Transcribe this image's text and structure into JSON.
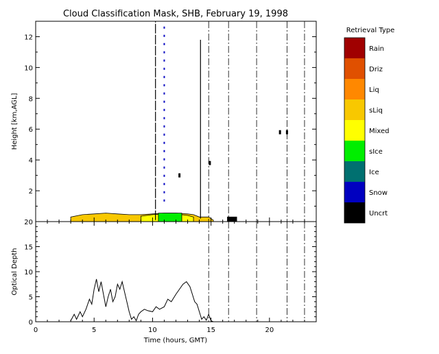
{
  "chart_data": [
    {
      "type": "heatmap",
      "title": "Cloud Classification Mask, SHB, February 19, 1998",
      "xlabel": "",
      "ylabel": "Height [km,AGL]",
      "xlim": [
        0,
        24
      ],
      "ylim": [
        0,
        13
      ],
      "ytick_labels": [
        "2",
        "4",
        "6",
        "8",
        "10",
        "12"
      ],
      "legend": {
        "title": "Retrieval Type",
        "placement": "right",
        "items": [
          {
            "label": "Rain",
            "color": "#a00000"
          },
          {
            "label": "Driz",
            "color": "#e05000"
          },
          {
            "label": "Liq",
            "color": "#ff8800"
          },
          {
            "label": "sLiq",
            "color": "#f8c800"
          },
          {
            "label": "Mixed",
            "color": "#ffff00"
          },
          {
            "label": "sIce",
            "color": "#00ee00"
          },
          {
            "label": "Ice",
            "color": "#007070"
          },
          {
            "label": "Snow",
            "color": "#0000c0"
          },
          {
            "label": "Uncrt",
            "color": "#000000"
          }
        ]
      },
      "layers": [
        {
          "class": "sLiq",
          "color": "#f8c800",
          "top_profile": [
            [
              3.0,
              0.3
            ],
            [
              4.0,
              0.45
            ],
            [
              5.0,
              0.5
            ],
            [
              6.0,
              0.55
            ],
            [
              7.0,
              0.5
            ],
            [
              8.0,
              0.45
            ],
            [
              9.0,
              0.45
            ],
            [
              10.0,
              0.5
            ],
            [
              11.0,
              0.55
            ],
            [
              12.0,
              0.55
            ],
            [
              13.0,
              0.5
            ],
            [
              13.5,
              0.45
            ],
            [
              14.0,
              0.3
            ],
            [
              14.8,
              0.3
            ],
            [
              15.2,
              0.1
            ]
          ]
        },
        {
          "class": "Mixed",
          "color": "#ffff00",
          "top_profile": [
            [
              9.0,
              0.35
            ],
            [
              10.0,
              0.45
            ],
            [
              11.0,
              0.5
            ],
            [
              12.0,
              0.5
            ],
            [
              13.0,
              0.4
            ],
            [
              13.5,
              0.3
            ]
          ]
        },
        {
          "class": "sIce",
          "color": "#00ee00",
          "top_profile": [
            [
              10.5,
              0.55
            ],
            [
              12.5,
              0.55
            ]
          ]
        },
        {
          "class": "Uncrt",
          "color": "#000000",
          "top_profile": [
            [
              16.4,
              0.3
            ],
            [
              17.2,
              0.3
            ]
          ]
        }
      ],
      "vertical_events": [
        {
          "x": 10.25,
          "y0": 0.1,
          "y1": 13.0,
          "class": "Uncrt"
        },
        {
          "x": 11.0,
          "y0": 1.3,
          "y1": 12.9,
          "class": "Snow"
        },
        {
          "x": 14.1,
          "y0": 0.2,
          "y1": 11.8,
          "class": "Uncrt"
        }
      ],
      "isolated_echoes": [
        {
          "x": 12.3,
          "y": 3.0,
          "class": "Uncrt"
        },
        {
          "x": 14.9,
          "y": 3.8,
          "class": "Uncrt"
        },
        {
          "x": 20.9,
          "y": 5.8,
          "class": "Uncrt"
        },
        {
          "x": 21.5,
          "y": 5.8,
          "class": "Uncrt"
        }
      ],
      "dash_dot_markers": [
        14.8,
        16.5,
        18.9,
        21.5,
        23.0
      ]
    },
    {
      "type": "line",
      "title": "",
      "xlabel": "Time (hours, GMT)",
      "ylabel": "Optical Depth",
      "xlim": [
        0,
        24
      ],
      "ylim": [
        0,
        20
      ],
      "xtick_labels": [
        "0",
        "5",
        "10",
        "15",
        "20"
      ],
      "ytick_labels": [
        "0",
        "5",
        "10",
        "15",
        "20"
      ],
      "series": [
        {
          "name": "",
          "x": [
            3.0,
            3.3,
            3.5,
            3.8,
            4.0,
            4.3,
            4.6,
            4.8,
            5.0,
            5.2,
            5.4,
            5.6,
            5.8,
            6.0,
            6.2,
            6.4,
            6.6,
            6.8,
            7.0,
            7.2,
            7.4,
            7.6,
            7.8,
            8.0,
            8.2,
            8.4,
            8.6,
            8.8,
            9.0,
            9.3,
            9.6,
            10.0,
            10.3,
            10.6,
            11.0,
            11.3,
            11.6,
            12.0,
            12.3,
            12.6,
            12.9,
            13.2,
            13.4,
            13.6,
            13.8,
            14.0,
            14.2,
            14.4,
            14.6,
            14.8,
            15.0,
            15.2
          ],
          "values": [
            0.2,
            1.5,
            0.5,
            2.0,
            1.0,
            2.5,
            4.5,
            3.5,
            6.5,
            8.5,
            6.0,
            8.0,
            5.5,
            3.0,
            5.0,
            6.5,
            4.0,
            5.0,
            7.5,
            6.5,
            8.0,
            6.0,
            4.0,
            2.0,
            0.5,
            1.0,
            0.2,
            1.5,
            2.0,
            2.5,
            2.2,
            2.0,
            3.0,
            2.5,
            3.0,
            4.5,
            4.0,
            5.5,
            6.5,
            7.5,
            8.0,
            7.0,
            5.5,
            4.0,
            3.5,
            2.0,
            0.5,
            1.0,
            0.3,
            1.5,
            0.2,
            0.0
          ]
        }
      ],
      "dash_dot_markers": [
        14.8,
        16.5,
        18.9,
        21.5,
        23.0
      ]
    }
  ]
}
